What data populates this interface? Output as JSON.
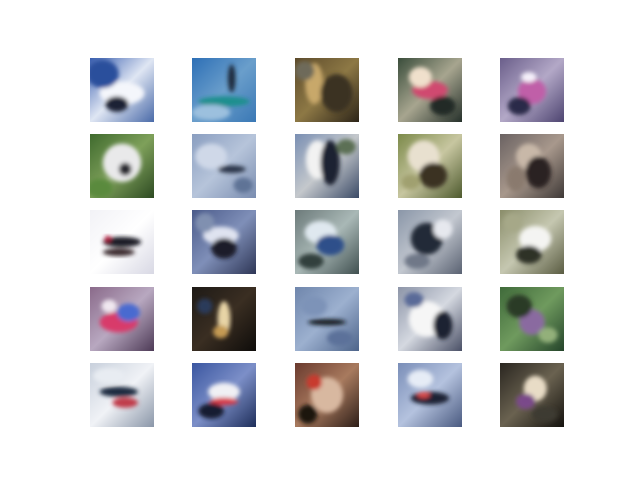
{
  "figure": {
    "rows": 5,
    "cols": 5,
    "background": "#ffffff",
    "tiles": [
      {
        "bg": [
          "#3a5fb0",
          "#dfe6f3",
          "#4a6aa8"
        ],
        "blobs": [
          [
            "#f4f6fb",
            0.5,
            0.55,
            0.35,
            0.18
          ],
          [
            "#1a2236",
            0.42,
            0.72,
            0.18,
            0.12
          ],
          [
            "#2b4f9c",
            0.2,
            0.25,
            0.25,
            0.22
          ]
        ]
      },
      {
        "bg": [
          "#2d6fb6",
          "#6a9ecb",
          "#3a78b5"
        ],
        "blobs": [
          [
            "#1f8f8e",
            0.5,
            0.68,
            0.4,
            0.08
          ],
          [
            "#1d2a3e",
            0.62,
            0.32,
            0.06,
            0.22
          ],
          [
            "#9cc0de",
            0.3,
            0.85,
            0.3,
            0.12
          ]
        ]
      },
      {
        "bg": [
          "#5c4a2a",
          "#8d7845",
          "#2c2418"
        ],
        "blobs": [
          [
            "#c8a86a",
            0.3,
            0.4,
            0.14,
            0.32
          ],
          [
            "#3b3020",
            0.65,
            0.55,
            0.25,
            0.3
          ],
          [
            "#6e6a5a",
            0.15,
            0.2,
            0.15,
            0.15
          ]
        ]
      },
      {
        "bg": [
          "#3a4d3b",
          "#a7a58f",
          "#25302a"
        ],
        "blobs": [
          [
            "#d04a70",
            0.5,
            0.5,
            0.28,
            0.14
          ],
          [
            "#f0e0cc",
            0.35,
            0.3,
            0.18,
            0.16
          ],
          [
            "#202a25",
            0.7,
            0.75,
            0.2,
            0.15
          ]
        ]
      },
      {
        "bg": [
          "#6a5e8a",
          "#b3a8c7",
          "#4d4470"
        ],
        "blobs": [
          [
            "#c05fa8",
            0.5,
            0.52,
            0.22,
            0.2
          ],
          [
            "#f5f0fa",
            0.45,
            0.3,
            0.12,
            0.08
          ],
          [
            "#2c2a4a",
            0.3,
            0.75,
            0.18,
            0.14
          ]
        ]
      },
      {
        "bg": [
          "#3f6a2e",
          "#7ea05a",
          "#2d4a22"
        ],
        "blobs": [
          [
            "#e9e9ea",
            0.5,
            0.45,
            0.3,
            0.3
          ],
          [
            "#2b2b33",
            0.55,
            0.55,
            0.1,
            0.1
          ],
          [
            "#5a8a3c",
            0.15,
            0.85,
            0.2,
            0.15
          ]
        ]
      },
      {
        "bg": [
          "#8a9ec0",
          "#b6c4da",
          "#7a8db0"
        ],
        "blobs": [
          [
            "#2a3548",
            0.62,
            0.55,
            0.22,
            0.06
          ],
          [
            "#cfd8e8",
            0.3,
            0.35,
            0.25,
            0.2
          ],
          [
            "#5f7396",
            0.8,
            0.8,
            0.15,
            0.12
          ]
        ]
      },
      {
        "bg": [
          "#7a8fb3",
          "#c4c8cc",
          "#3b4a66"
        ],
        "blobs": [
          [
            "#f2f2f2",
            0.35,
            0.4,
            0.18,
            0.3
          ],
          [
            "#1c2230",
            0.55,
            0.45,
            0.15,
            0.35
          ],
          [
            "#5c6f55",
            0.8,
            0.2,
            0.15,
            0.12
          ]
        ]
      },
      {
        "bg": [
          "#7c8a4a",
          "#c7c6a0",
          "#4e5a2e"
        ],
        "blobs": [
          [
            "#e8e0cf",
            0.4,
            0.35,
            0.25,
            0.25
          ],
          [
            "#3a3324",
            0.55,
            0.65,
            0.22,
            0.2
          ],
          [
            "#a0a070",
            0.2,
            0.75,
            0.15,
            0.12
          ]
        ]
      },
      {
        "bg": [
          "#6a6262",
          "#a8988c",
          "#3e3836"
        ],
        "blobs": [
          [
            "#c8b8a8",
            0.45,
            0.35,
            0.2,
            0.2
          ],
          [
            "#2a2424",
            0.6,
            0.6,
            0.2,
            0.25
          ],
          [
            "#8a7a6e",
            0.25,
            0.7,
            0.15,
            0.2
          ]
        ]
      },
      {
        "bg": [
          "#f2f2f6",
          "#ffffff",
          "#d8d8e4"
        ],
        "blobs": [
          [
            "#1c1c26",
            0.5,
            0.5,
            0.3,
            0.08
          ],
          [
            "#3a2a2e",
            0.45,
            0.66,
            0.25,
            0.06
          ],
          [
            "#b01e3c",
            0.28,
            0.45,
            0.05,
            0.05
          ]
        ]
      },
      {
        "bg": [
          "#4a5a8a",
          "#7f8fb8",
          "#2e3656"
        ],
        "blobs": [
          [
            "#dfe3f0",
            0.45,
            0.4,
            0.28,
            0.14
          ],
          [
            "#1a1e2c",
            0.5,
            0.6,
            0.2,
            0.16
          ],
          [
            "#8090b0",
            0.2,
            0.2,
            0.15,
            0.15
          ]
        ]
      },
      {
        "bg": [
          "#6c7a7a",
          "#a9b8b6",
          "#405050"
        ],
        "blobs": [
          [
            "#dfe8ef",
            0.4,
            0.35,
            0.25,
            0.18
          ],
          [
            "#2d4f8a",
            0.55,
            0.55,
            0.22,
            0.16
          ],
          [
            "#33403e",
            0.25,
            0.8,
            0.2,
            0.12
          ]
        ]
      },
      {
        "bg": [
          "#8a96a8",
          "#c3c8d0",
          "#5a6272"
        ],
        "blobs": [
          [
            "#232a38",
            0.45,
            0.45,
            0.25,
            0.25
          ],
          [
            "#e6e8ee",
            0.7,
            0.3,
            0.15,
            0.15
          ],
          [
            "#6f7888",
            0.3,
            0.8,
            0.2,
            0.12
          ]
        ]
      },
      {
        "bg": [
          "#8a8d6a",
          "#c5c7b0",
          "#5a5c42"
        ],
        "blobs": [
          [
            "#f4f4f2",
            0.55,
            0.45,
            0.25,
            0.2
          ],
          [
            "#2f3025",
            0.45,
            0.7,
            0.2,
            0.14
          ],
          [
            "#a6a888",
            0.2,
            0.2,
            0.15,
            0.15
          ]
        ]
      },
      {
        "bg": [
          "#8a6a8a",
          "#b8a8c0",
          "#4d3a56"
        ],
        "blobs": [
          [
            "#d83a6a",
            0.45,
            0.55,
            0.3,
            0.16
          ],
          [
            "#4a6ad0",
            0.6,
            0.4,
            0.18,
            0.14
          ],
          [
            "#f0e8f0",
            0.3,
            0.3,
            0.12,
            0.1
          ]
        ]
      },
      {
        "bg": [
          "#1e1a16",
          "#3a2e22",
          "#0e0c0a"
        ],
        "blobs": [
          [
            "#e8d4a6",
            0.5,
            0.5,
            0.1,
            0.28
          ],
          [
            "#c49a52",
            0.45,
            0.7,
            0.12,
            0.1
          ],
          [
            "#2a3a5a",
            0.2,
            0.3,
            0.12,
            0.12
          ]
        ]
      },
      {
        "bg": [
          "#6f86ac",
          "#9cb0cf",
          "#4d648a"
        ],
        "blobs": [
          [
            "#141a24",
            0.5,
            0.55,
            0.3,
            0.05
          ],
          [
            "#7d93b8",
            0.3,
            0.3,
            0.2,
            0.15
          ],
          [
            "#5b719a",
            0.7,
            0.8,
            0.2,
            0.12
          ]
        ]
      },
      {
        "bg": [
          "#8d95a8",
          "#d4d8e0",
          "#4a5066"
        ],
        "blobs": [
          [
            "#f6f6f6",
            0.45,
            0.5,
            0.28,
            0.28
          ],
          [
            "#1e2330",
            0.7,
            0.6,
            0.15,
            0.22
          ],
          [
            "#5a6a98",
            0.25,
            0.2,
            0.15,
            0.12
          ]
        ]
      },
      {
        "bg": [
          "#3f6a3a",
          "#6f9a5e",
          "#24442a"
        ],
        "blobs": [
          [
            "#8a6aa0",
            0.5,
            0.55,
            0.2,
            0.2
          ],
          [
            "#2a3a26",
            0.3,
            0.3,
            0.2,
            0.18
          ],
          [
            "#93b07a",
            0.75,
            0.75,
            0.15,
            0.12
          ]
        ]
      },
      {
        "bg": [
          "#c8d0dc",
          "#f0f2f6",
          "#8a96a8"
        ],
        "blobs": [
          [
            "#1c2a40",
            0.45,
            0.45,
            0.3,
            0.08
          ],
          [
            "#c03a4a",
            0.55,
            0.62,
            0.2,
            0.08
          ],
          [
            "#e8ecf2",
            0.3,
            0.2,
            0.25,
            0.12
          ]
        ]
      },
      {
        "bg": [
          "#3a56a0",
          "#7c8fc8",
          "#1e2e5a"
        ],
        "blobs": [
          [
            "#f0f0f4",
            0.5,
            0.45,
            0.25,
            0.14
          ],
          [
            "#d83a4a",
            0.5,
            0.6,
            0.22,
            0.06
          ],
          [
            "#141c30",
            0.3,
            0.75,
            0.2,
            0.12
          ]
        ]
      },
      {
        "bg": [
          "#6a3a2e",
          "#a87a5e",
          "#2e1e18"
        ],
        "blobs": [
          [
            "#d8b8a0",
            0.5,
            0.5,
            0.25,
            0.28
          ],
          [
            "#c83a2e",
            0.3,
            0.3,
            0.12,
            0.12
          ],
          [
            "#1a1410",
            0.2,
            0.8,
            0.15,
            0.15
          ]
        ]
      },
      {
        "bg": [
          "#7a8eb8",
          "#b4c2de",
          "#4a5a80"
        ],
        "blobs": [
          [
            "#1e2434",
            0.5,
            0.55,
            0.3,
            0.1
          ],
          [
            "#d84a4a",
            0.4,
            0.5,
            0.1,
            0.05
          ],
          [
            "#e6ecf6",
            0.35,
            0.25,
            0.2,
            0.14
          ]
        ]
      },
      {
        "bg": [
          "#2a2620",
          "#6a6250",
          "#14120e"
        ],
        "blobs": [
          [
            "#e8dcc6",
            0.55,
            0.4,
            0.18,
            0.2
          ],
          [
            "#7a4a8a",
            0.4,
            0.6,
            0.15,
            0.12
          ],
          [
            "#3c3a30",
            0.7,
            0.8,
            0.2,
            0.12
          ]
        ]
      }
    ]
  }
}
